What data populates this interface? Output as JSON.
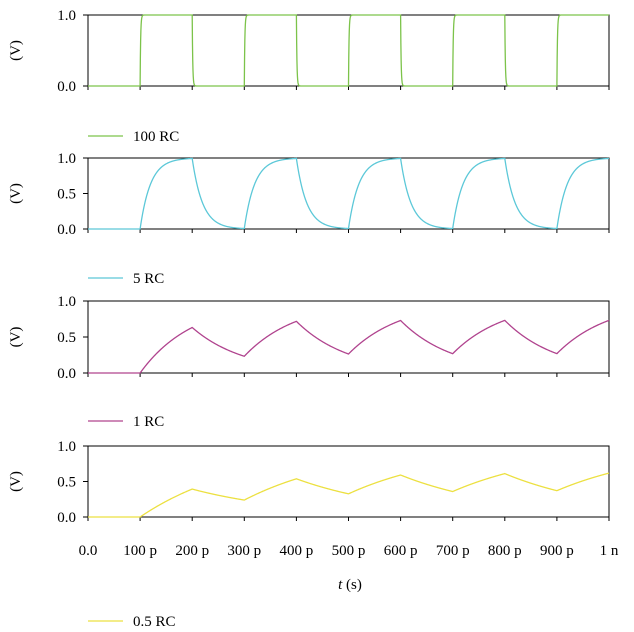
{
  "chart_data": [
    {
      "type": "line",
      "series": [
        {
          "name": "100 RC",
          "color": "#7cc34a",
          "time_constant_ps": 1,
          "rise_start_ps": 100,
          "period_ps": 200,
          "x_end_ps": 1000
        }
      ],
      "ylabel": "(V)",
      "yticks": [
        "0.0",
        "1.0"
      ],
      "ylim": [
        0,
        1
      ],
      "legend": "100 RC",
      "legend_placement": "below"
    },
    {
      "type": "line",
      "series": [
        {
          "name": "5 RC",
          "color": "#5cc8d8",
          "time_constant_ps": 20,
          "rise_start_ps": 100,
          "period_ps": 200,
          "x_end_ps": 1000
        }
      ],
      "ylabel": "(V)",
      "yticks": [
        "0.0",
        "0.5",
        "1.0"
      ],
      "ylim": [
        0,
        1
      ],
      "legend": "5 RC",
      "legend_placement": "below"
    },
    {
      "type": "line",
      "series": [
        {
          "name": "1 RC",
          "color": "#b0438e",
          "time_constant_ps": 100,
          "rise_start_ps": 100,
          "period_ps": 200,
          "x_end_ps": 1000
        }
      ],
      "ylabel": "(V)",
      "yticks": [
        "0.0",
        "0.5",
        "1.0"
      ],
      "ylim": [
        0,
        1
      ],
      "legend": "1 RC",
      "legend_placement": "below"
    },
    {
      "type": "line",
      "series": [
        {
          "name": "0.5 RC",
          "color": "#ece040",
          "time_constant_ps": 200,
          "rise_start_ps": 100,
          "period_ps": 200,
          "x_end_ps": 1000
        }
      ],
      "ylabel": "(V)",
      "yticks": [
        "0.0",
        "0.5",
        "1.0"
      ],
      "ylim": [
        0,
        1
      ],
      "legend": "0.5 RC",
      "legend_placement": "below",
      "xticks": [
        "0.0",
        "100 p",
        "200 p",
        "300 p",
        "400 p",
        "500 p",
        "600 p",
        "700 p",
        "800 p",
        "900 p",
        "1 n"
      ],
      "xlabel_var": "t",
      "xlabel_unit": " (s)"
    }
  ]
}
